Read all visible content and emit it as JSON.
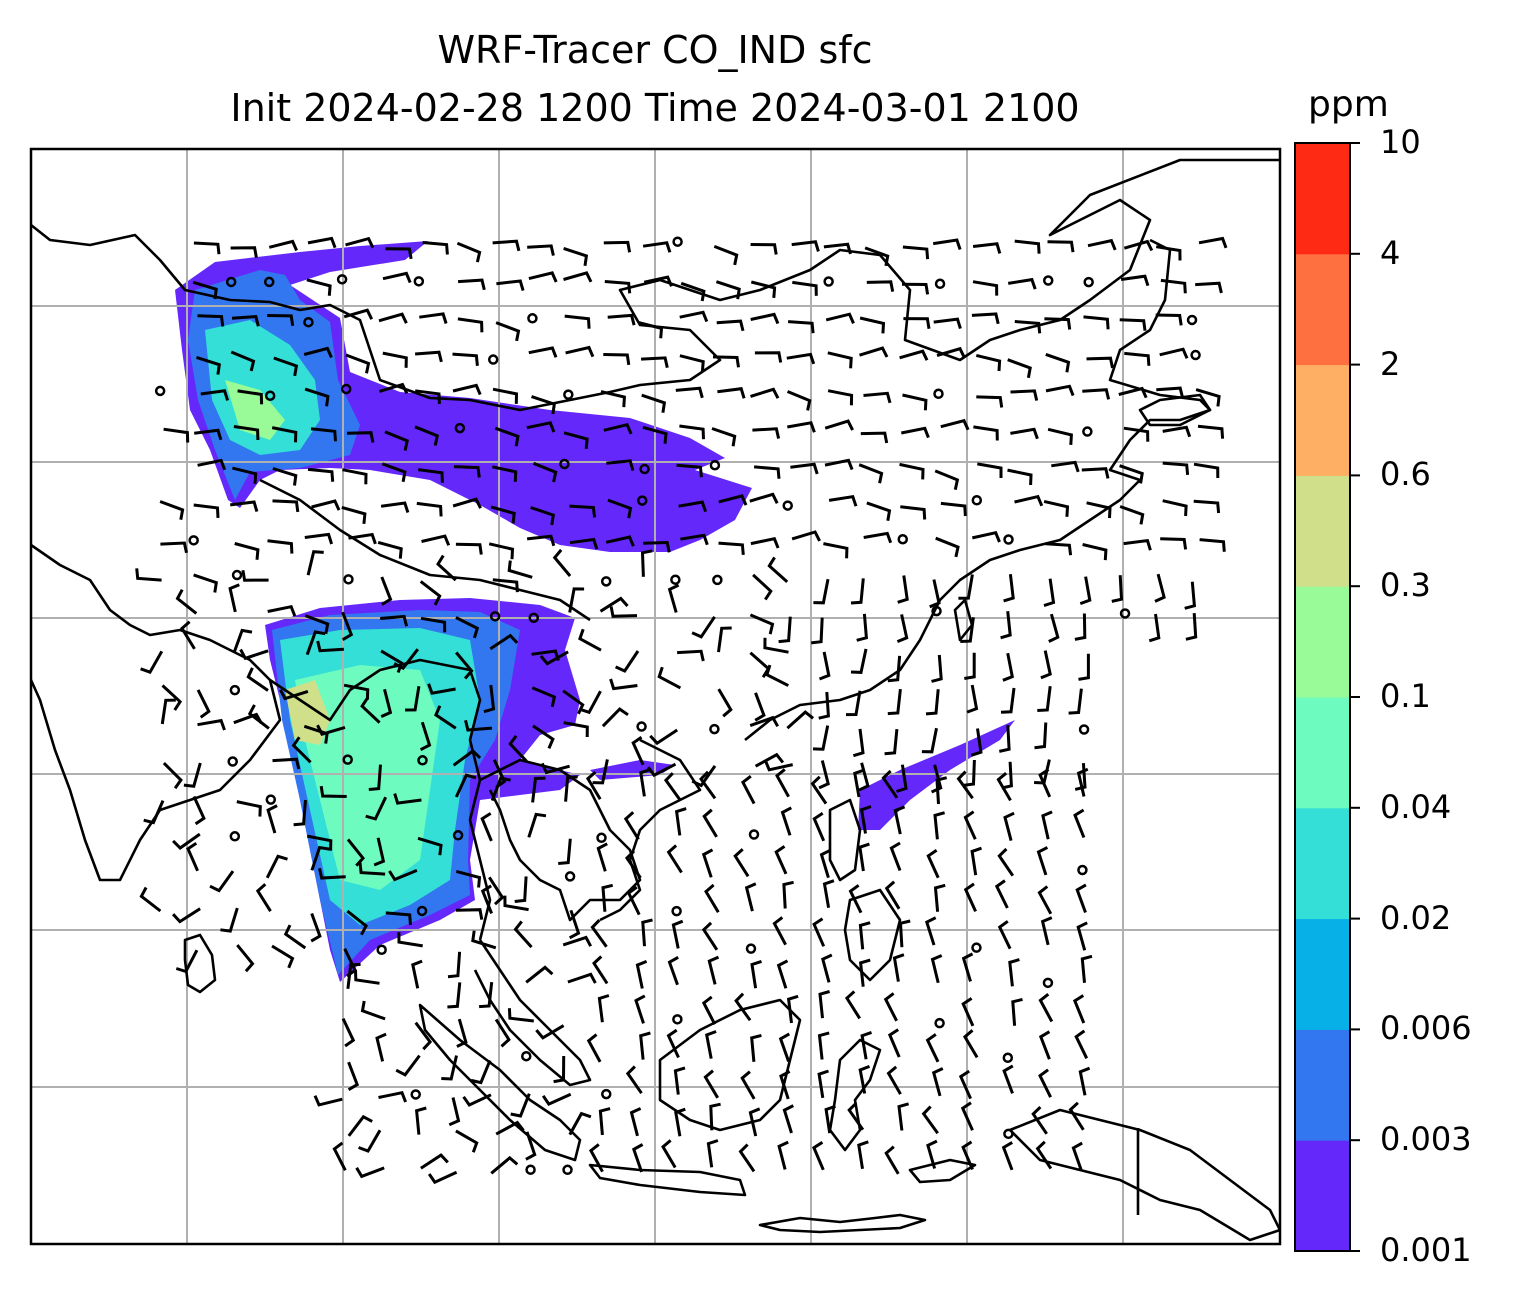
{
  "title": {
    "line1": "WRF-Tracer CO_IND sfc",
    "line2": "Init 2024-02-28 1200 Time 2024-03-01 2100"
  },
  "colorbar": {
    "unit": "ppm",
    "levels": [
      "0.001",
      "0.003",
      "0.006",
      "0.02",
      "0.04",
      "0.1",
      "0.3",
      "0.6",
      "2",
      "4",
      "10"
    ],
    "colors": [
      "#6528fa",
      "#3276f0",
      "#08b0e8",
      "#33dfd6",
      "#6efbc0",
      "#98fb98",
      "#d0e08a",
      "#feaf64",
      "#ff7040",
      "#ff2a14"
    ]
  },
  "map": {
    "region": "South and East Asia, Maritime Continent",
    "gridlines": true,
    "coastlines_color": "#000000",
    "gridline_color": "#b0b0b0",
    "wind_barbs": true
  }
}
